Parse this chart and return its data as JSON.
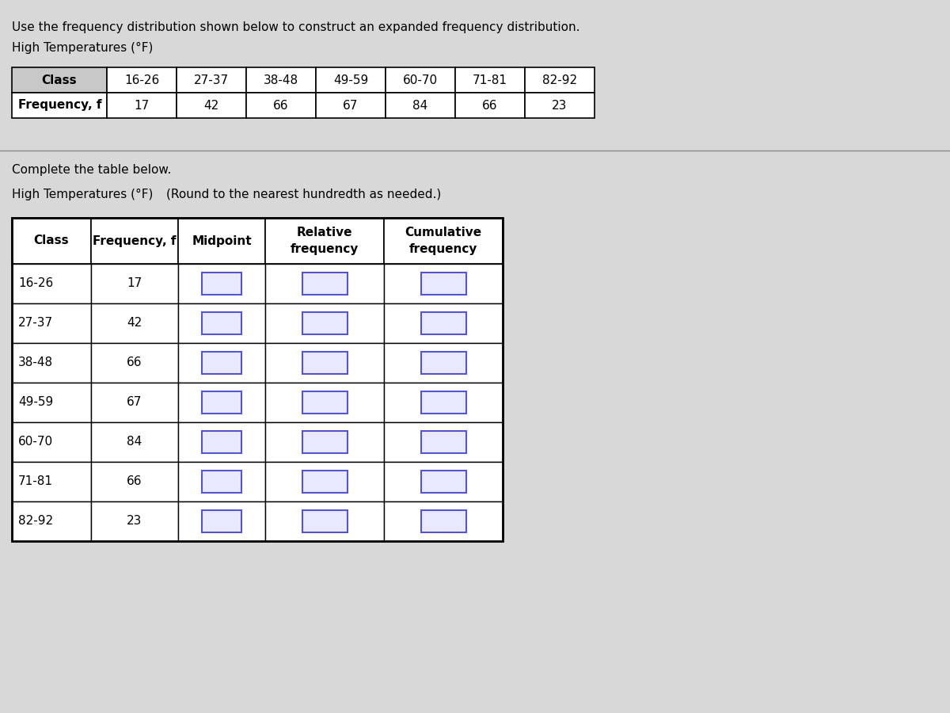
{
  "title_line1": "Use the frequency distribution shown below to construct an expanded frequency distribution.",
  "title_line2": "High Temperatures (°F)",
  "top_table_header": [
    "Class",
    "16-26",
    "27-37",
    "38-48",
    "49-59",
    "60-70",
    "71-81",
    "82-92"
  ],
  "top_table_freq_label": "Frequency, f",
  "top_table_freqs": [
    17,
    42,
    66,
    67,
    84,
    66,
    23
  ],
  "complete_label": "Complete the table below.",
  "bottom_title": "High Temperatures (°F)",
  "round_note": "(Round to the nearest hundredth as needed.)",
  "bottom_col_headers": [
    "Class",
    "Frequency, f",
    "Midpoint",
    "Relative\nfrequency",
    "Cumulative\nfrequency"
  ],
  "bottom_classes": [
    "16-26",
    "27-37",
    "38-48",
    "49-59",
    "60-70",
    "71-81",
    "82-92"
  ],
  "bottom_freqs": [
    17,
    42,
    66,
    67,
    84,
    66,
    23
  ],
  "bg_color": "#d8d8d8",
  "table_bg": "#ffffff",
  "text_color": "#000000",
  "input_box_color": "#e8e8ff",
  "input_box_border": "#5555cc",
  "header_bold": true
}
